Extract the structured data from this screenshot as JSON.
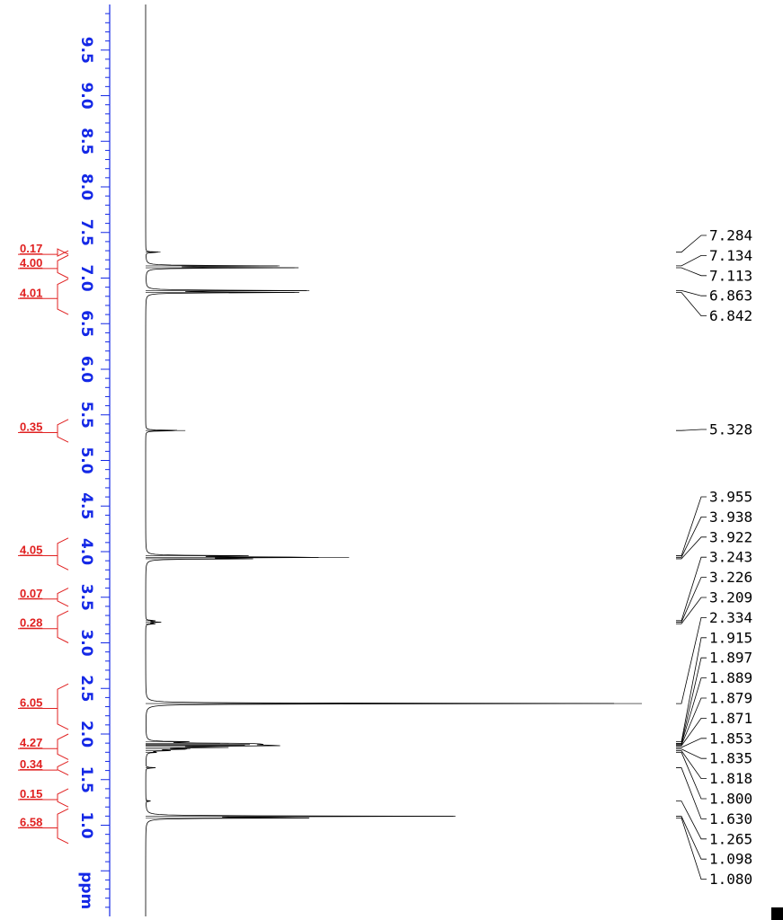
{
  "colors": {
    "axis": "#1428e6",
    "integral": "#e02020",
    "spectrum": "#000000",
    "background": "#ffffff"
  },
  "chart_data": {
    "type": "line",
    "title": "",
    "xlabel": "ppm",
    "ylabel": "",
    "x_axis_orientation": "vertical, ppm increasing toward top",
    "xlim": [
      10.0,
      0.0
    ],
    "ticks": [
      "9.5",
      "9.0",
      "8.5",
      "8.0",
      "7.5",
      "7.0",
      "6.5",
      "6.0",
      "5.5",
      "5.0",
      "4.5",
      "4.0",
      "3.5",
      "3.0",
      "2.5",
      "2.0",
      "1.5",
      "1.0"
    ],
    "unit_label": "ppm",
    "grid": false,
    "peaks": [
      {
        "ppm": 7.284,
        "intensity": 0.03
      },
      {
        "ppm": 7.134,
        "intensity": 0.27
      },
      {
        "ppm": 7.113,
        "intensity": 0.3
      },
      {
        "ppm": 6.863,
        "intensity": 0.33
      },
      {
        "ppm": 6.842,
        "intensity": 0.3
      },
      {
        "ppm": 5.328,
        "intensity": 0.08
      },
      {
        "ppm": 3.955,
        "intensity": 0.19
      },
      {
        "ppm": 3.938,
        "intensity": 0.41
      },
      {
        "ppm": 3.922,
        "intensity": 0.2
      },
      {
        "ppm": 3.243,
        "intensity": 0.02
      },
      {
        "ppm": 3.226,
        "intensity": 0.03
      },
      {
        "ppm": 3.209,
        "intensity": 0.02
      },
      {
        "ppm": 2.334,
        "intensity": 1.0
      },
      {
        "ppm": 1.915,
        "intensity": 0.08
      },
      {
        "ppm": 1.897,
        "intensity": 0.15
      },
      {
        "ppm": 1.889,
        "intensity": 0.21
      },
      {
        "ppm": 1.879,
        "intensity": 0.2
      },
      {
        "ppm": 1.871,
        "intensity": 0.21
      },
      {
        "ppm": 1.853,
        "intensity": 0.15
      },
      {
        "ppm": 1.835,
        "intensity": 0.09
      },
      {
        "ppm": 1.818,
        "intensity": 0.04
      },
      {
        "ppm": 1.8,
        "intensity": 0.02
      },
      {
        "ppm": 1.63,
        "intensity": 0.02
      },
      {
        "ppm": 1.265,
        "intensity": 0.01
      },
      {
        "ppm": 1.098,
        "intensity": 0.62
      },
      {
        "ppm": 1.08,
        "intensity": 0.33
      }
    ],
    "peak_labels": [
      "7.284",
      "7.134",
      "7.113",
      "6.863",
      "6.842",
      "5.328",
      "3.955",
      "3.938",
      "3.922",
      "3.243",
      "3.226",
      "3.209",
      "2.334",
      "1.915",
      "1.897",
      "1.889",
      "1.879",
      "1.871",
      "1.853",
      "1.835",
      "1.818",
      "1.800",
      "1.630",
      "1.265",
      "1.098",
      "1.080"
    ],
    "integrals": [
      {
        "value": "0.17",
        "from": 7.3,
        "to": 7.26
      },
      {
        "value": "4.00",
        "from": 7.25,
        "to": 7.0
      },
      {
        "value": "4.01",
        "from": 6.99,
        "to": 6.6
      },
      {
        "value": "0.35",
        "from": 5.45,
        "to": 5.2
      },
      {
        "value": "4.05",
        "from": 4.15,
        "to": 3.8
      },
      {
        "value": "0.07",
        "from": 3.6,
        "to": 3.4
      },
      {
        "value": "0.28",
        "from": 3.35,
        "to": 3.0
      },
      {
        "value": "6.05",
        "from": 2.55,
        "to": 2.05
      },
      {
        "value": "4.27",
        "from": 2.0,
        "to": 1.72
      },
      {
        "value": "0.34",
        "from": 1.7,
        "to": 1.55
      },
      {
        "value": "0.15",
        "from": 1.4,
        "to": 1.2
      },
      {
        "value": "6.58",
        "from": 1.18,
        "to": 0.8
      }
    ]
  }
}
